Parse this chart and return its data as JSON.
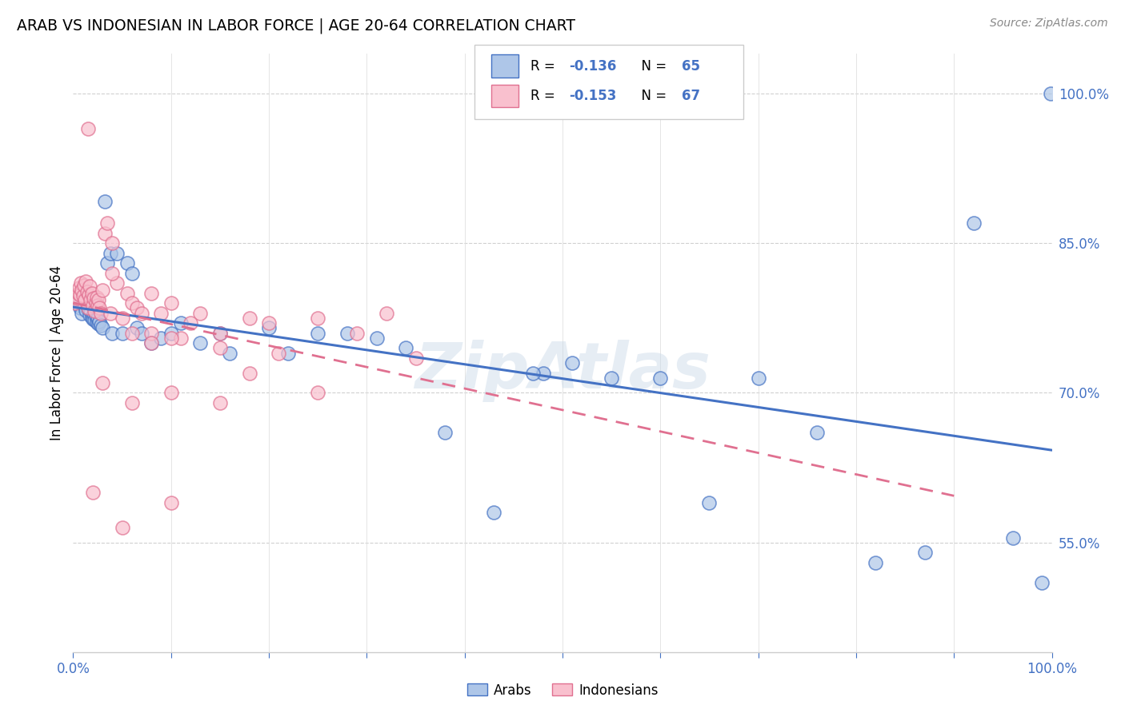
{
  "title": "ARAB VS INDONESIAN IN LABOR FORCE | AGE 20-64 CORRELATION CHART",
  "source": "Source: ZipAtlas.com",
  "ylabel": "In Labor Force | Age 20-64",
  "xlim": [
    0.0,
    1.0
  ],
  "ylim": [
    0.44,
    1.04
  ],
  "y_ticks": [
    0.55,
    0.7,
    0.85,
    1.0
  ],
  "y_tick_labels": [
    "55.0%",
    "70.0%",
    "85.0%",
    "100.0%"
  ],
  "legend_arab_R": "-0.136",
  "legend_arab_N": "65",
  "legend_indo_R": "-0.153",
  "legend_indo_N": "67",
  "arab_color": "#aec6e8",
  "arab_edge_color": "#4472c4",
  "indo_color": "#f9c0ce",
  "indo_edge_color": "#e07090",
  "arab_line_color": "#4472c4",
  "indo_line_color": "#e07090",
  "watermark": "ZipAtlas",
  "arab_scatter_x": [
    0.003,
    0.005,
    0.006,
    0.007,
    0.008,
    0.009,
    0.01,
    0.011,
    0.012,
    0.013,
    0.014,
    0.015,
    0.016,
    0.017,
    0.018,
    0.019,
    0.02,
    0.021,
    0.022,
    0.023,
    0.024,
    0.025,
    0.026,
    0.027,
    0.028,
    0.03,
    0.032,
    0.035,
    0.038,
    0.04,
    0.045,
    0.05,
    0.055,
    0.06,
    0.065,
    0.07,
    0.08,
    0.09,
    0.1,
    0.11,
    0.13,
    0.15,
    0.16,
    0.2,
    0.22,
    0.25,
    0.28,
    0.31,
    0.34,
    0.38,
    0.43,
    0.48,
    0.51,
    0.55,
    0.6,
    0.65,
    0.7,
    0.76,
    0.82,
    0.87,
    0.92,
    0.96,
    0.99,
    0.999,
    0.47
  ],
  "arab_scatter_y": [
    0.79,
    0.792,
    0.788,
    0.785,
    0.793,
    0.78,
    0.789,
    0.791,
    0.787,
    0.783,
    0.795,
    0.786,
    0.784,
    0.778,
    0.782,
    0.776,
    0.774,
    0.779,
    0.773,
    0.777,
    0.771,
    0.775,
    0.769,
    0.772,
    0.768,
    0.765,
    0.892,
    0.83,
    0.84,
    0.76,
    0.84,
    0.76,
    0.83,
    0.82,
    0.765,
    0.76,
    0.75,
    0.755,
    0.76,
    0.77,
    0.75,
    0.76,
    0.74,
    0.765,
    0.74,
    0.76,
    0.76,
    0.755,
    0.745,
    0.66,
    0.58,
    0.72,
    0.73,
    0.715,
    0.715,
    0.59,
    0.715,
    0.66,
    0.53,
    0.54,
    0.87,
    0.555,
    0.51,
    1.0,
    0.72
  ],
  "indo_scatter_x": [
    0.002,
    0.004,
    0.005,
    0.006,
    0.007,
    0.008,
    0.009,
    0.01,
    0.011,
    0.012,
    0.013,
    0.014,
    0.015,
    0.016,
    0.017,
    0.018,
    0.019,
    0.02,
    0.021,
    0.022,
    0.023,
    0.024,
    0.025,
    0.026,
    0.027,
    0.028,
    0.03,
    0.032,
    0.035,
    0.038,
    0.04,
    0.045,
    0.05,
    0.055,
    0.06,
    0.065,
    0.07,
    0.08,
    0.09,
    0.1,
    0.11,
    0.13,
    0.15,
    0.18,
    0.2,
    0.25,
    0.29,
    0.32,
    0.35,
    0.08,
    0.015,
    0.04,
    0.06,
    0.08,
    0.1,
    0.12,
    0.15,
    0.18,
    0.21,
    0.25,
    0.03,
    0.06,
    0.1,
    0.15,
    0.02,
    0.05,
    0.1
  ],
  "indo_scatter_y": [
    0.79,
    0.795,
    0.8,
    0.805,
    0.798,
    0.81,
    0.803,
    0.797,
    0.808,
    0.793,
    0.812,
    0.801,
    0.785,
    0.798,
    0.807,
    0.793,
    0.8,
    0.788,
    0.795,
    0.782,
    0.79,
    0.796,
    0.788,
    0.793,
    0.785,
    0.78,
    0.803,
    0.86,
    0.87,
    0.78,
    0.85,
    0.81,
    0.775,
    0.8,
    0.79,
    0.785,
    0.78,
    0.8,
    0.78,
    0.79,
    0.755,
    0.78,
    0.76,
    0.775,
    0.77,
    0.775,
    0.76,
    0.78,
    0.735,
    0.76,
    0.965,
    0.82,
    0.76,
    0.75,
    0.755,
    0.77,
    0.745,
    0.72,
    0.74,
    0.7,
    0.71,
    0.69,
    0.7,
    0.69,
    0.6,
    0.565,
    0.59
  ]
}
